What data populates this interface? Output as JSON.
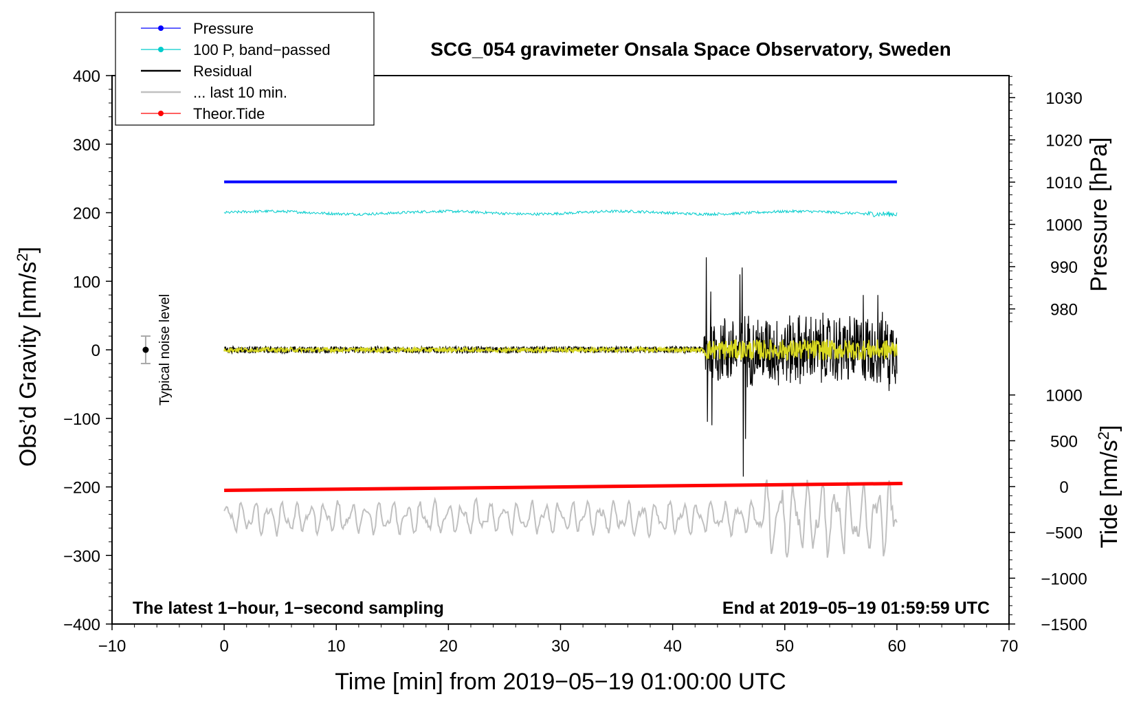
{
  "chart_data": {
    "type": "line",
    "title": "SCG_054 gravimeter Onsala Space Observatory, Sweden",
    "xlabel": "Time [min] from 2019−05−19 01:00:00 UTC",
    "ylabel_left": "Obs’d Gravity [nm/s²]",
    "ylabel_right_top": "Pressure [hPa]",
    "ylabel_right_bottom": "Tide [nm/s²]",
    "xlim": [
      -10,
      70
    ],
    "ylim": [
      -400,
      400
    ],
    "x_ticks": [
      "−10",
      "0",
      "10",
      "20",
      "30",
      "40",
      "50",
      "60",
      "70"
    ],
    "y_ticks": [
      "400",
      "300",
      "200",
      "100",
      "0",
      "−100",
      "−200",
      "−300",
      "−400"
    ],
    "pressure_axis": {
      "ticks": [
        "1030",
        "1020",
        "1010",
        "1000",
        "990",
        "980"
      ],
      "values": [
        1030,
        1020,
        1010,
        1000,
        990,
        980
      ]
    },
    "tide_axis": {
      "ticks": [
        "1000",
        "500",
        "0",
        "−500",
        "−1000",
        "−1500"
      ],
      "values": [
        1000,
        500,
        0,
        -500,
        -1000,
        -1500
      ]
    },
    "legend": [
      {
        "label": "Pressure",
        "color": "#0000ff",
        "marker": true
      },
      {
        "label": "100 P, band−passed",
        "color": "#00cccc",
        "marker": true
      },
      {
        "label": "Residual",
        "color": "#000000",
        "marker": false
      },
      {
        "label": "... last 10 min.",
        "color": "#c0c0c0",
        "marker": false
      },
      {
        "label": "Theor.Tide",
        "color": "#ff0000",
        "marker": true
      }
    ],
    "series": [
      {
        "name": "Pressure",
        "color": "#0000ff",
        "x_range": [
          0,
          60
        ],
        "plotted_value": 245,
        "pressure_hPa": 1010
      },
      {
        "name": "100 P, band−passed",
        "color": "#00cccc",
        "x_range": [
          0,
          60
        ],
        "plotted_value": 200,
        "noise_amplitude": 4
      },
      {
        "name": "Residual",
        "color": "#000000",
        "x_range": [
          0,
          60
        ],
        "quiet_until_min": 42.8,
        "quiet_amplitude": 5,
        "active_amplitude": 60,
        "spikes": [
          [
            43.0,
            135
          ],
          [
            43.1,
            -105
          ],
          [
            43.4,
            85
          ],
          [
            43.5,
            -110
          ],
          [
            46.0,
            110
          ],
          [
            46.2,
            120
          ],
          [
            46.3,
            -185
          ],
          [
            46.5,
            -130
          ],
          [
            57.0,
            80
          ],
          [
            58.3,
            80
          ],
          [
            59.3,
            -60
          ]
        ]
      },
      {
        "name": "Residual (smoothed)",
        "color": "#d8d820",
        "x_range": [
          0,
          60
        ],
        "quiet_amplitude": 3,
        "active_amplitude": 15
      },
      {
        "name": "... last 10 min.",
        "color": "#c0c0c0",
        "x_range": [
          0,
          60
        ],
        "plotted_center": -245,
        "plotted_amplitude_small": 25,
        "plotted_amplitude_large": 55
      },
      {
        "name": "Theor.Tide",
        "color": "#ff0000",
        "x": [
          0,
          60.5
        ],
        "plotted_values": [
          -205,
          -195
        ],
        "tide_nm_s2": [
          -80,
          0
        ]
      }
    ],
    "noise_bar": {
      "label": "Typical noise level",
      "x": -7,
      "center": 0,
      "half_range": 20
    },
    "annotations": {
      "left": "The latest 1−hour, 1−second sampling",
      "right": "End at 2019−05−19 01:59:59 UTC"
    }
  }
}
